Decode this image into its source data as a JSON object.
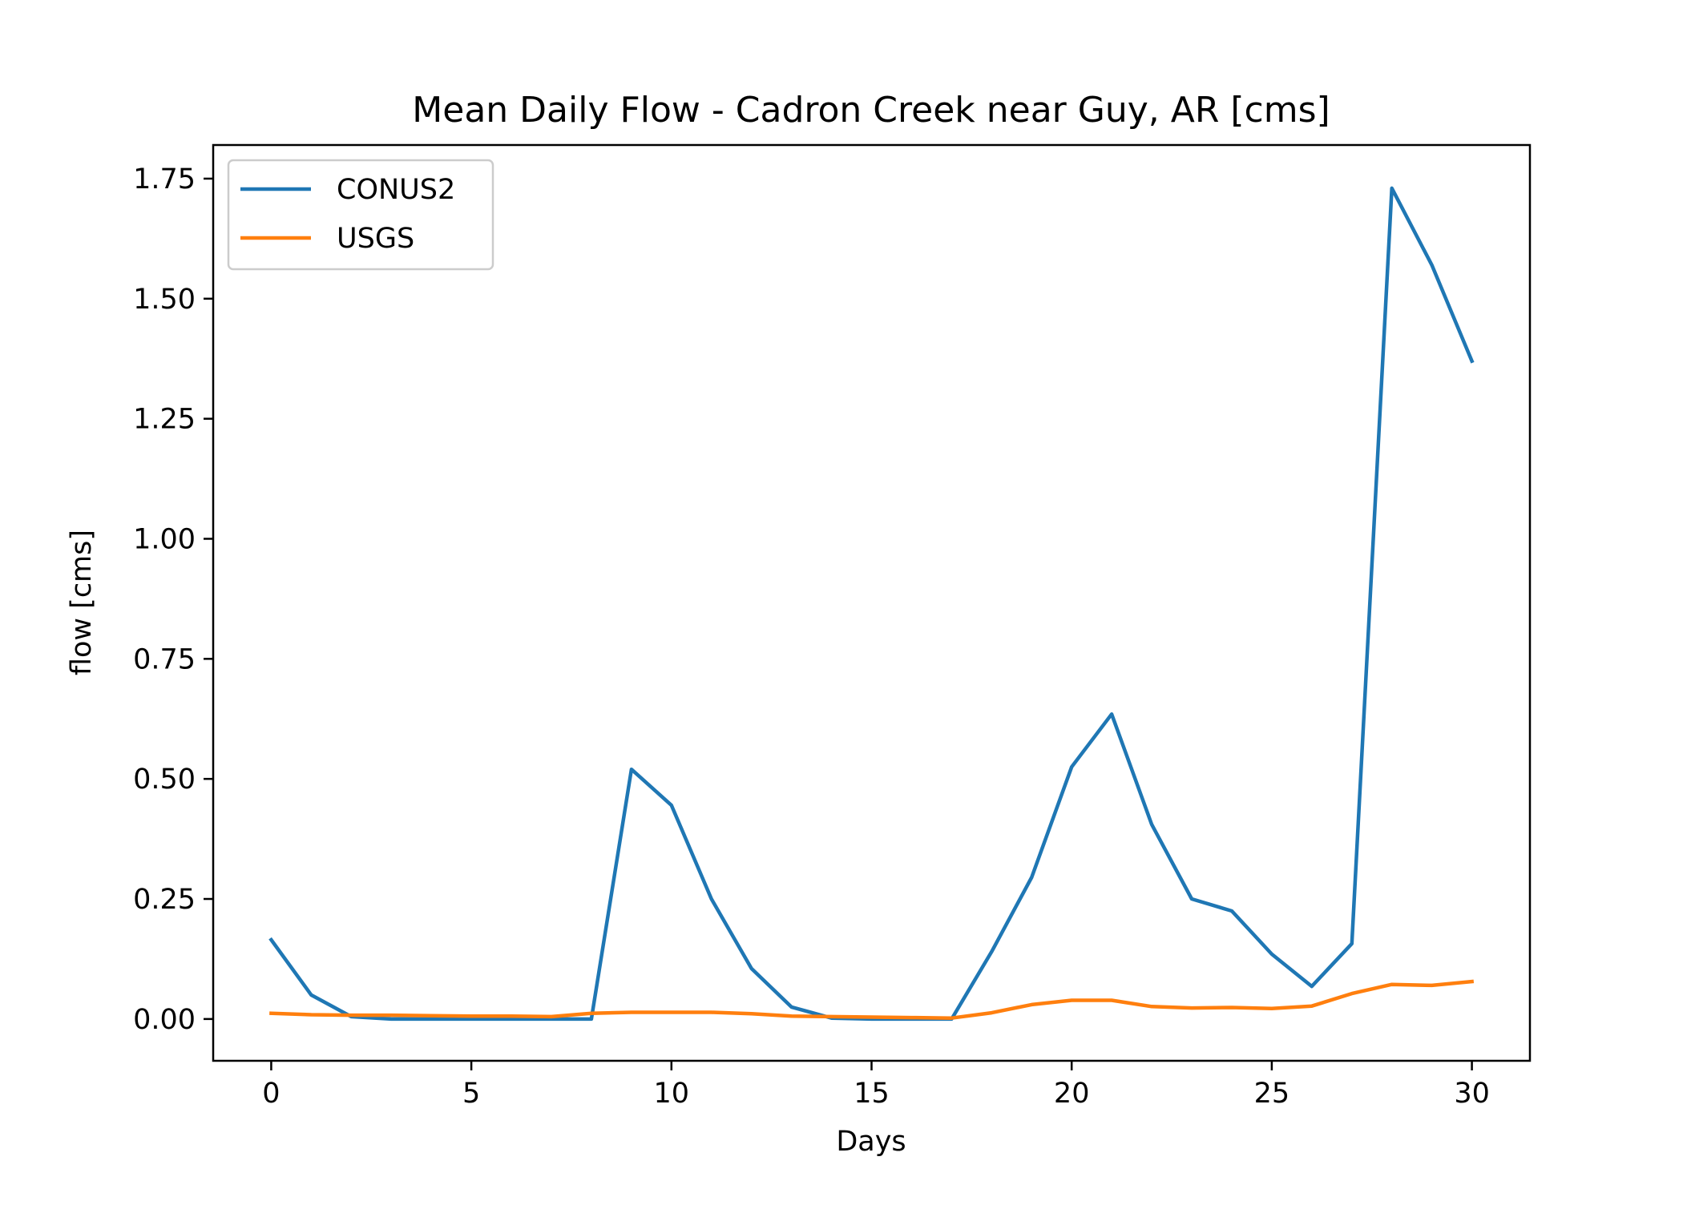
{
  "chart_data": {
    "type": "line",
    "title": "Mean Daily Flow - Cadron Creek near Guy, AR [cms]",
    "xlabel": "Days",
    "ylabel": "flow [cms]",
    "xlim": [
      -1.45,
      31.45
    ],
    "ylim": [
      -0.087,
      1.82
    ],
    "xticks": [
      0,
      5,
      10,
      15,
      20,
      25,
      30
    ],
    "xtick_labels": [
      "0",
      "5",
      "10",
      "15",
      "20",
      "25",
      "30"
    ],
    "yticks": [
      0.0,
      0.25,
      0.5,
      0.75,
      1.0,
      1.25,
      1.5,
      1.75
    ],
    "ytick_labels": [
      "0.00",
      "0.25",
      "0.50",
      "0.75",
      "1.00",
      "1.25",
      "1.50",
      "1.75"
    ],
    "grid": false,
    "legend_position": "upper-left",
    "x": [
      0,
      1,
      2,
      3,
      4,
      5,
      6,
      7,
      8,
      9,
      10,
      11,
      12,
      13,
      14,
      15,
      16,
      17,
      18,
      19,
      20,
      21,
      22,
      23,
      24,
      25,
      26,
      27,
      28,
      29,
      30
    ],
    "series": [
      {
        "name": "CONUS2",
        "color": "#1f77b4",
        "values": [
          0.165,
          0.05,
          0.005,
          0.0,
          0.0,
          0.0,
          0.0,
          0.0,
          0.0,
          0.52,
          0.445,
          0.25,
          0.105,
          0.025,
          0.002,
          0.0,
          0.0,
          0.0,
          0.14,
          0.295,
          0.525,
          0.635,
          0.405,
          0.25,
          0.225,
          0.135,
          0.068,
          0.157,
          1.73,
          1.57,
          1.37
        ]
      },
      {
        "name": "USGS",
        "color": "#ff7f0e",
        "values": [
          0.012,
          0.009,
          0.008,
          0.008,
          0.007,
          0.006,
          0.006,
          0.005,
          0.012,
          0.014,
          0.014,
          0.014,
          0.011,
          0.006,
          0.005,
          0.004,
          0.003,
          0.002,
          0.013,
          0.03,
          0.039,
          0.039,
          0.026,
          0.023,
          0.024,
          0.022,
          0.027,
          0.053,
          0.072,
          0.07,
          0.078
        ]
      }
    ]
  }
}
